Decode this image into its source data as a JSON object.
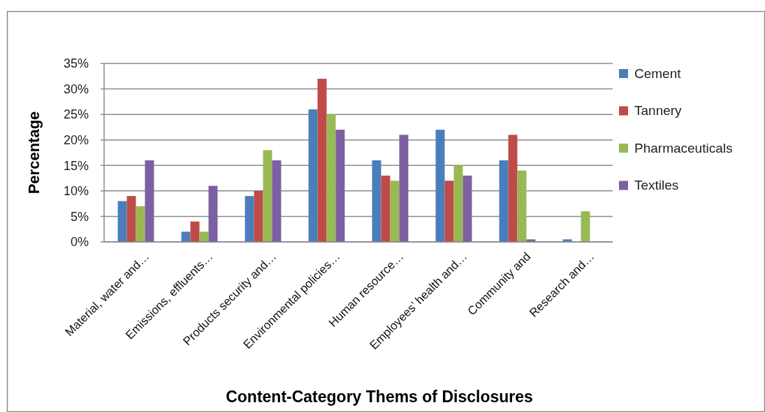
{
  "chart_data": {
    "type": "bar",
    "xlabel": "Content-Category Thems of Disclosures",
    "ylabel": "Percentage",
    "categories": [
      "Material, water and…",
      "Emissions, effluents…",
      "Products security and…",
      "Environmental policies…",
      "Human resource…",
      "Employees’ health and…",
      "Community and",
      "Research and…"
    ],
    "series": [
      {
        "name": "Cement",
        "color": "#4a7ebb",
        "values": [
          8,
          2,
          9,
          26,
          16,
          22,
          16,
          0.5
        ]
      },
      {
        "name": "Tannery",
        "color": "#be4b48",
        "values": [
          9,
          4,
          10,
          32,
          13,
          12,
          21,
          0
        ]
      },
      {
        "name": "Pharmaceuticals",
        "color": "#98b954",
        "values": [
          7,
          2,
          18,
          25,
          12,
          15,
          14,
          6
        ]
      },
      {
        "name": "Textiles",
        "color": "#7d60a0",
        "values": [
          16,
          11,
          16,
          22,
          21,
          13,
          0.5,
          0
        ]
      }
    ],
    "ylim": [
      0,
      35
    ],
    "yticks": [
      {
        "value": 0,
        "label": "0%"
      },
      {
        "value": 5,
        "label": "5%"
      },
      {
        "value": 10,
        "label": "10%"
      },
      {
        "value": 15,
        "label": "15%"
      },
      {
        "value": 20,
        "label": "20%"
      },
      {
        "value": 25,
        "label": "25%"
      },
      {
        "value": 30,
        "label": "30%"
      },
      {
        "value": 35,
        "label": "35%"
      }
    ],
    "grid": "y",
    "legend": "right"
  }
}
